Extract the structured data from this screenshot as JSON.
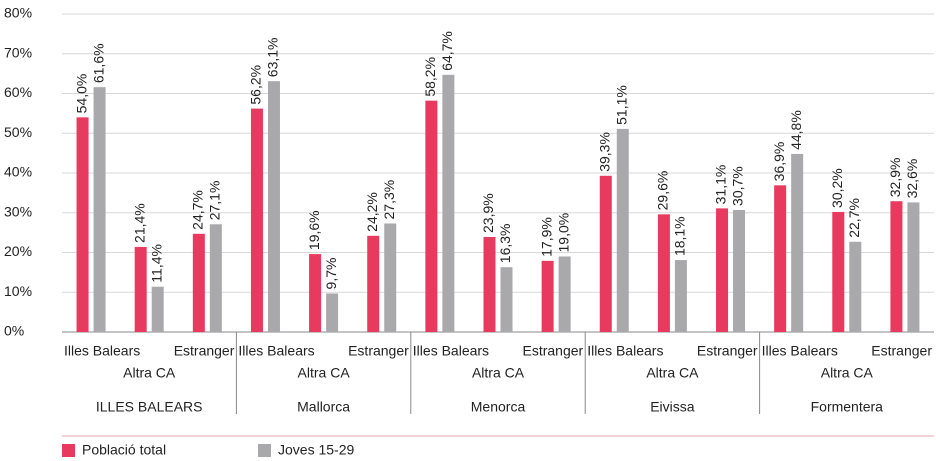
{
  "chart_data": {
    "type": "bar",
    "groups": [
      "ILLES BALEARS",
      "Mallorca",
      "Menorca",
      "Eivissa",
      "Formentera"
    ],
    "categories": [
      "Illes Balears",
      "Altra CA",
      "Estranger",
      "Illes Balears",
      "Altra CA",
      "Estranger",
      "Illes Balears",
      "Altra CA",
      "Estranger",
      "Illes Balears",
      "Altra CA",
      "Estranger",
      "Illes Balears",
      "Altra CA",
      "Estranger"
    ],
    "series": [
      {
        "name": "Població total",
        "color": "#e8395e",
        "values": [
          54.0,
          21.4,
          24.7,
          56.2,
          19.6,
          24.2,
          58.2,
          23.9,
          17.9,
          39.3,
          29.6,
          31.1,
          36.9,
          30.2,
          32.9
        ],
        "value_labels": [
          "54,0%",
          "21,4%",
          "24,7%",
          "56,2%",
          "19,6%",
          "24,2%",
          "58,2%",
          "23,9%",
          "17,9%",
          "39,3%",
          "29,6%",
          "31,1%",
          "36,9%",
          "30,2%",
          "32,9%"
        ]
      },
      {
        "name": "Joves 15-29",
        "color": "#a9a9ab",
        "values": [
          61.6,
          11.4,
          27.1,
          63.1,
          9.7,
          27.3,
          64.7,
          16.3,
          19.0,
          51.1,
          18.1,
          30.7,
          44.8,
          22.7,
          32.6
        ],
        "value_labels": [
          "61,6%",
          "11,4%",
          "27,1%",
          "63,1%",
          "9,7%",
          "27,3%",
          "64,7%",
          "16,3%",
          "19,0%",
          "51,1%",
          "18,1%",
          "30,7%",
          "44,8%",
          "22,7%",
          "32,6%"
        ]
      }
    ],
    "ylim": [
      0,
      80
    ],
    "yticks": [
      {
        "value": 0,
        "label": "0%"
      },
      {
        "value": 10,
        "label": "10%"
      },
      {
        "value": 20,
        "label": "20%"
      },
      {
        "value": 30,
        "label": "30%"
      },
      {
        "value": 40,
        "label": "40%"
      },
      {
        "value": 50,
        "label": "50%"
      },
      {
        "value": 60,
        "label": "60%"
      },
      {
        "value": 70,
        "label": "70%"
      },
      {
        "value": 80,
        "label": "80%"
      }
    ],
    "grid": true,
    "legend": "bottom-left"
  }
}
